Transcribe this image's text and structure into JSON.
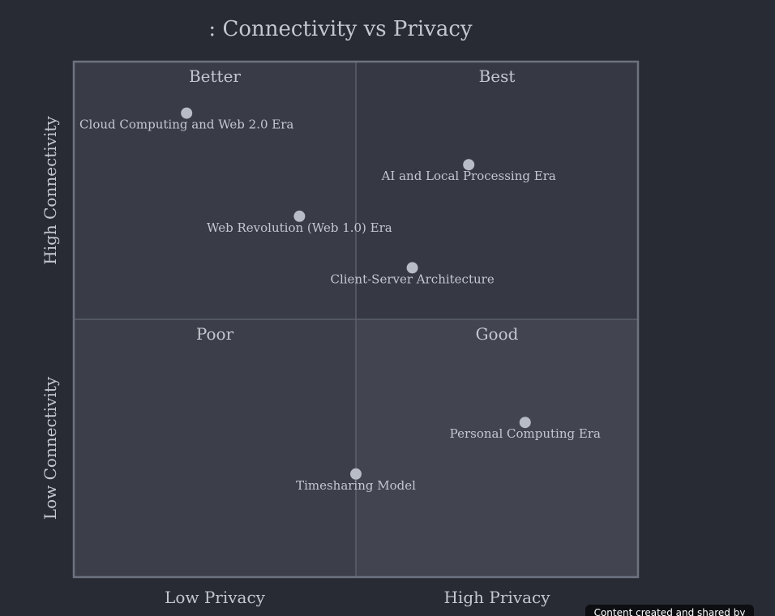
{
  "chart_data": {
    "type": "scatter",
    "title": ": Connectivity vs Privacy",
    "x_axis": {
      "low_label": "Low Privacy",
      "high_label": "High Privacy",
      "range": [
        0,
        1
      ]
    },
    "y_axis": {
      "low_label": "Low Connectivity",
      "high_label": "High Connectivity",
      "range": [
        0,
        1
      ]
    },
    "quadrants": {
      "top_left": "Better",
      "top_right": "Best",
      "bottom_left": "Poor",
      "bottom_right": "Good"
    },
    "points": [
      {
        "label": "Cloud Computing and Web 2.0 Era",
        "x": 0.2,
        "y": 0.9
      },
      {
        "label": "AI and Local Processing Era",
        "x": 0.7,
        "y": 0.8
      },
      {
        "label": "Web Revolution (Web 1.0) Era",
        "x": 0.4,
        "y": 0.7
      },
      {
        "label": "Client-Server Architecture",
        "x": 0.6,
        "y": 0.6
      },
      {
        "label": "Personal Computing Era",
        "x": 0.8,
        "y": 0.3
      },
      {
        "label": "Timesharing Model",
        "x": 0.5,
        "y": 0.2
      }
    ],
    "colors": {
      "background": "#282b33",
      "quadrant_top_left": "#393c46",
      "quadrant_top_right": "#363943",
      "quadrant_bottom_left": "#3c3f49",
      "quadrant_bottom_right": "#424550",
      "border": "#6d7280",
      "divider": "#5b606c",
      "point": "#b8bcc6",
      "text": "#c3c7cf"
    }
  },
  "footer": {
    "text": "Content created and shared by"
  }
}
